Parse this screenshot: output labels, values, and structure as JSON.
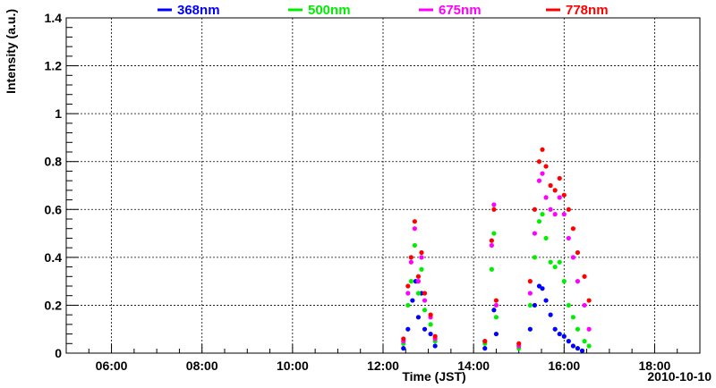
{
  "chart_data": {
    "type": "scatter",
    "xlabel": "Time (JST)",
    "ylabel": "Intensity (a.u.)",
    "date_label": "2010-10-10",
    "x_unit": "hours (JST)",
    "xlim": [
      5.0,
      19.0
    ],
    "ylim": [
      0,
      1.4
    ],
    "x_ticks": [
      {
        "value": 6,
        "label": "06:00"
      },
      {
        "value": 8,
        "label": "08:00"
      },
      {
        "value": 10,
        "label": "10:00"
      },
      {
        "value": 12,
        "label": "12:00"
      },
      {
        "value": 14,
        "label": "14:00"
      },
      {
        "value": 16,
        "label": "16:00"
      },
      {
        "value": 18,
        "label": "18:00"
      }
    ],
    "y_ticks": [
      {
        "value": 0,
        "label": "0"
      },
      {
        "value": 0.2,
        "label": "0.2"
      },
      {
        "value": 0.4,
        "label": "0.4"
      },
      {
        "value": 0.6,
        "label": "0.6"
      },
      {
        "value": 0.8,
        "label": "0.8"
      },
      {
        "value": 1.0,
        "label": "1"
      },
      {
        "value": 1.2,
        "label": "1.2"
      },
      {
        "value": 1.4,
        "label": "1.4"
      }
    ],
    "grid": true,
    "legend_position": "top",
    "series": [
      {
        "name": "368nm",
        "color": "#0000ff",
        "points": [
          [
            12.45,
            0.02
          ],
          [
            12.55,
            0.1
          ],
          [
            12.65,
            0.22
          ],
          [
            12.72,
            0.3
          ],
          [
            12.78,
            0.15
          ],
          [
            12.85,
            0.25
          ],
          [
            12.92,
            0.1
          ],
          [
            13.05,
            0.08
          ],
          [
            13.15,
            0.03
          ],
          [
            14.25,
            0.02
          ],
          [
            14.45,
            0.18
          ],
          [
            14.5,
            0.08
          ],
          [
            15.25,
            0.1
          ],
          [
            15.35,
            0.2
          ],
          [
            15.45,
            0.28
          ],
          [
            15.52,
            0.27
          ],
          [
            15.6,
            0.22
          ],
          [
            15.7,
            0.16
          ],
          [
            15.8,
            0.1
          ],
          [
            15.9,
            0.08
          ],
          [
            16.0,
            0.07
          ],
          [
            16.1,
            0.05
          ],
          [
            16.2,
            0.03
          ],
          [
            16.3,
            0.02
          ],
          [
            16.4,
            0.01
          ]
        ]
      },
      {
        "name": "500nm",
        "color": "#00ee00",
        "points": [
          [
            12.45,
            0.04
          ],
          [
            12.55,
            0.2
          ],
          [
            12.62,
            0.3
          ],
          [
            12.7,
            0.45
          ],
          [
            12.78,
            0.25
          ],
          [
            12.85,
            0.35
          ],
          [
            12.92,
            0.18
          ],
          [
            13.05,
            0.12
          ],
          [
            13.15,
            0.05
          ],
          [
            14.25,
            0.04
          ],
          [
            14.4,
            0.35
          ],
          [
            14.45,
            0.5
          ],
          [
            14.5,
            0.15
          ],
          [
            15.0,
            0.02
          ],
          [
            15.25,
            0.2
          ],
          [
            15.35,
            0.4
          ],
          [
            15.45,
            0.55
          ],
          [
            15.52,
            0.58
          ],
          [
            15.6,
            0.48
          ],
          [
            15.7,
            0.38
          ],
          [
            15.8,
            0.36
          ],
          [
            15.9,
            0.38
          ],
          [
            16.0,
            0.3
          ],
          [
            16.1,
            0.2
          ],
          [
            16.2,
            0.15
          ],
          [
            16.3,
            0.1
          ],
          [
            16.45,
            0.05
          ],
          [
            16.55,
            0.03
          ]
        ]
      },
      {
        "name": "675nm",
        "color": "#ff00ff",
        "points": [
          [
            12.45,
            0.05
          ],
          [
            12.55,
            0.25
          ],
          [
            12.62,
            0.38
          ],
          [
            12.7,
            0.52
          ],
          [
            12.78,
            0.3
          ],
          [
            12.85,
            0.4
          ],
          [
            12.92,
            0.22
          ],
          [
            13.05,
            0.15
          ],
          [
            13.15,
            0.06
          ],
          [
            14.25,
            0.05
          ],
          [
            14.4,
            0.45
          ],
          [
            14.45,
            0.62
          ],
          [
            14.5,
            0.2
          ],
          [
            15.0,
            0.03
          ],
          [
            15.25,
            0.25
          ],
          [
            15.35,
            0.5
          ],
          [
            15.45,
            0.72
          ],
          [
            15.52,
            0.75
          ],
          [
            15.6,
            0.65
          ],
          [
            15.7,
            0.6
          ],
          [
            15.8,
            0.58
          ],
          [
            15.9,
            0.65
          ],
          [
            16.0,
            0.58
          ],
          [
            16.1,
            0.48
          ],
          [
            16.2,
            0.4
          ],
          [
            16.3,
            0.3
          ],
          [
            16.45,
            0.2
          ],
          [
            16.55,
            0.1
          ]
        ]
      },
      {
        "name": "778nm",
        "color": "#ff0000",
        "points": [
          [
            12.45,
            0.06
          ],
          [
            12.55,
            0.28
          ],
          [
            12.62,
            0.4
          ],
          [
            12.7,
            0.55
          ],
          [
            12.78,
            0.32
          ],
          [
            12.85,
            0.42
          ],
          [
            12.92,
            0.25
          ],
          [
            13.05,
            0.16
          ],
          [
            13.15,
            0.07
          ],
          [
            14.25,
            0.05
          ],
          [
            14.4,
            0.47
          ],
          [
            14.45,
            0.6
          ],
          [
            14.5,
            0.22
          ],
          [
            15.0,
            0.04
          ],
          [
            15.25,
            0.3
          ],
          [
            15.35,
            0.6
          ],
          [
            15.45,
            0.8
          ],
          [
            15.52,
            0.85
          ],
          [
            15.6,
            0.78
          ],
          [
            15.7,
            0.7
          ],
          [
            15.8,
            0.68
          ],
          [
            15.9,
            0.73
          ],
          [
            16.0,
            0.66
          ],
          [
            16.1,
            0.6
          ],
          [
            16.2,
            0.52
          ],
          [
            16.3,
            0.42
          ],
          [
            16.45,
            0.32
          ],
          [
            16.55,
            0.22
          ]
        ]
      }
    ]
  }
}
